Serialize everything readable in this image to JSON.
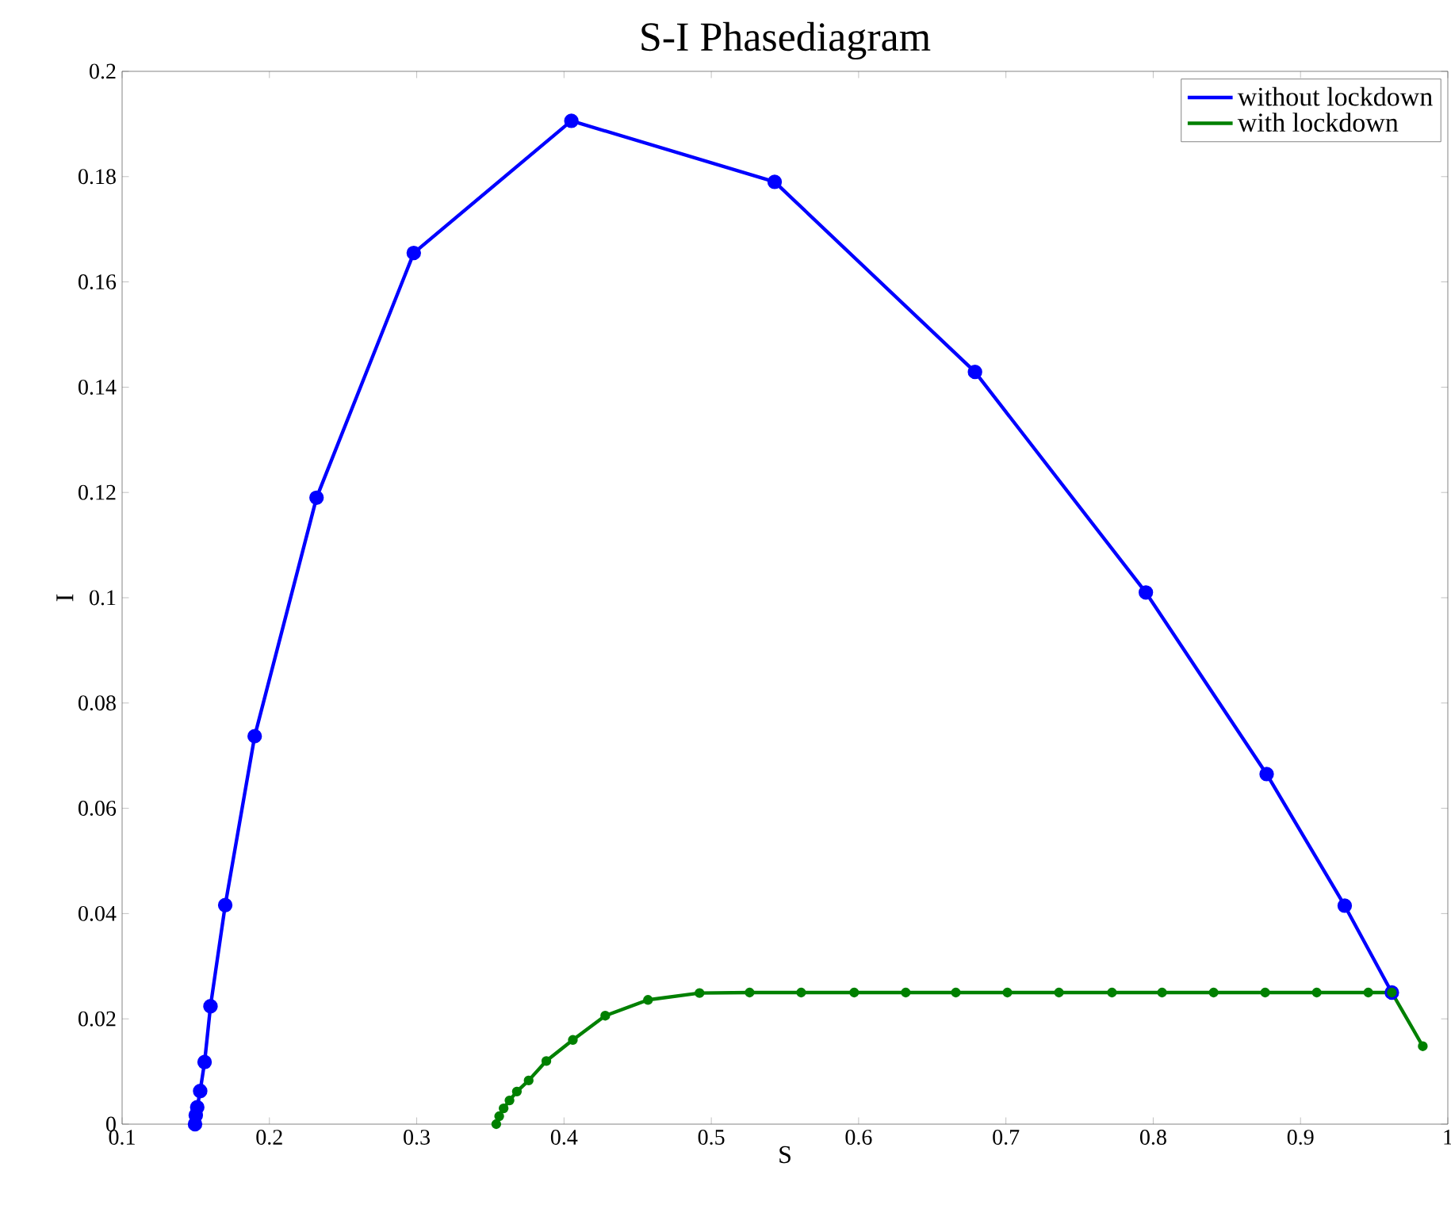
{
  "chart_data": {
    "type": "line",
    "title": "S-I Phasediagram",
    "xlabel": "S",
    "ylabel": "I",
    "xlim": [
      0.1,
      1
    ],
    "ylim": [
      0,
      0.2
    ],
    "xticks": [
      0.1,
      0.2,
      0.3,
      0.4,
      0.5,
      0.6,
      0.7,
      0.8,
      0.9,
      1
    ],
    "yticks": [
      0,
      0.02,
      0.04,
      0.06,
      0.08,
      0.1,
      0.12,
      0.14,
      0.16,
      0.18,
      0.2
    ],
    "legend": "top right",
    "marker": "circle",
    "grid": false,
    "series": [
      {
        "name": "without lockdown",
        "color": "#0000ff",
        "x": [
          0.1495,
          0.15,
          0.151,
          0.153,
          0.156,
          0.16,
          0.17,
          0.19,
          0.232,
          0.298,
          0.405,
          0.543,
          0.679,
          0.795,
          0.877,
          0.93,
          0.962
        ],
        "values": [
          0,
          0.0017,
          0.0032,
          0.0063,
          0.0118,
          0.0224,
          0.0416,
          0.0737,
          0.119,
          0.1655,
          0.1906,
          0.179,
          0.1429,
          0.101,
          0.0665,
          0.0415,
          0.025
        ]
      },
      {
        "name": "with lockdown",
        "color": "#008000",
        "x": [
          0.354,
          0.356,
          0.359,
          0.363,
          0.368,
          0.376,
          0.388,
          0.406,
          0.428,
          0.457,
          0.492,
          0.526,
          0.561,
          0.597,
          0.632,
          0.666,
          0.701,
          0.736,
          0.772,
          0.806,
          0.841,
          0.876,
          0.911,
          0.946,
          0.962,
          0.983
        ],
        "values": [
          0,
          0.0015,
          0.003,
          0.0045,
          0.0062,
          0.0083,
          0.012,
          0.016,
          0.0206,
          0.0236,
          0.0249,
          0.025,
          0.025,
          0.025,
          0.025,
          0.025,
          0.025,
          0.025,
          0.025,
          0.025,
          0.025,
          0.025,
          0.025,
          0.025,
          0.025,
          0.0148
        ]
      }
    ]
  }
}
